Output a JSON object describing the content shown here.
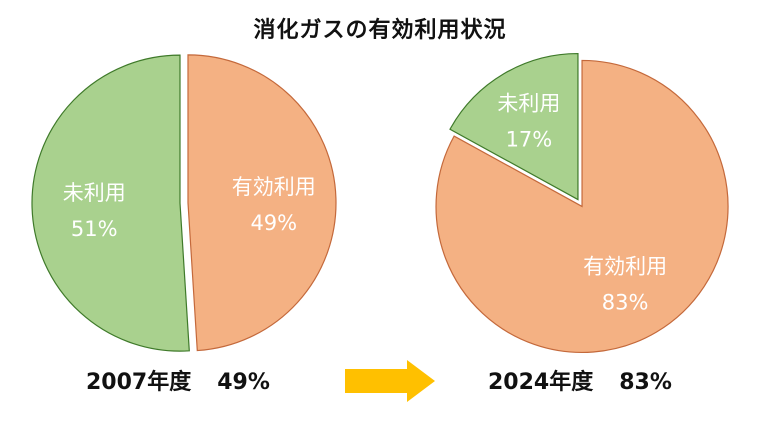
{
  "title": "消化ガスの有効利用状況",
  "colors": {
    "used": "#f4b183",
    "unused": "#a9d18e",
    "used_edge": "#c4693b",
    "unused_edge": "#3f7a2a",
    "arrow": "#ffc000"
  },
  "chart_data": [
    {
      "type": "pie",
      "year_label": "2007年度",
      "rate_label": "49%",
      "slices": [
        {
          "label": "有効利用",
          "value": 49,
          "pct_label": "49%"
        },
        {
          "label": "未利用",
          "value": 51,
          "pct_label": "51%"
        }
      ]
    },
    {
      "type": "pie",
      "year_label": "2024年度",
      "rate_label": "83%",
      "slices": [
        {
          "label": "有効利用",
          "value": 83,
          "pct_label": "83%"
        },
        {
          "label": "未利用",
          "value": 17,
          "pct_label": "17%"
        }
      ]
    }
  ]
}
